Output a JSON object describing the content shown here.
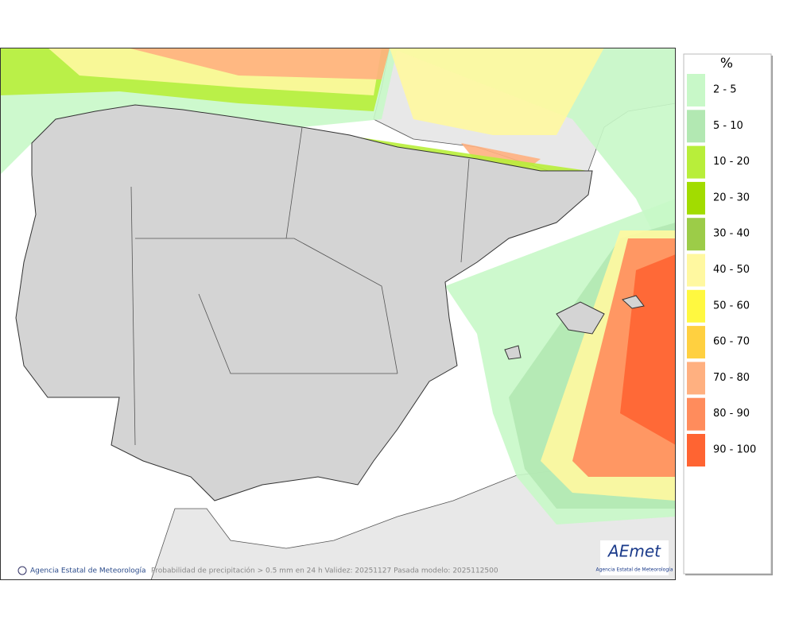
{
  "legend": {
    "title": "%",
    "items": [
      {
        "label": "2 - 5",
        "color": "#c8f8c8"
      },
      {
        "label": "5 - 10",
        "color": "#b2e8b2"
      },
      {
        "label": "10 - 20",
        "color": "#b8ee3a"
      },
      {
        "label": "20 - 30",
        "color": "#a2dc00"
      },
      {
        "label": "30 - 40",
        "color": "#9ccc48"
      },
      {
        "label": "40 - 50",
        "color": "#fff8a0"
      },
      {
        "label": "50 - 60",
        "color": "#fff840"
      },
      {
        "label": "60 - 70",
        "color": "#ffd040"
      },
      {
        "label": "70 - 80",
        "color": "#ffb080"
      },
      {
        "label": "80 - 90",
        "color": "#ff8c5c"
      },
      {
        "label": "90 - 100",
        "color": "#ff6432"
      }
    ]
  },
  "footer": {
    "credit": "Agencia Estatal de Meteorología",
    "caption": "Probabilidad de precipitación > 0.5 mm en 24 h Validez: 20251127 Pasada modelo: 2025112500"
  },
  "logo": {
    "name": "AEmet",
    "subtitle": "Agencia Estatal de Meteorología"
  }
}
